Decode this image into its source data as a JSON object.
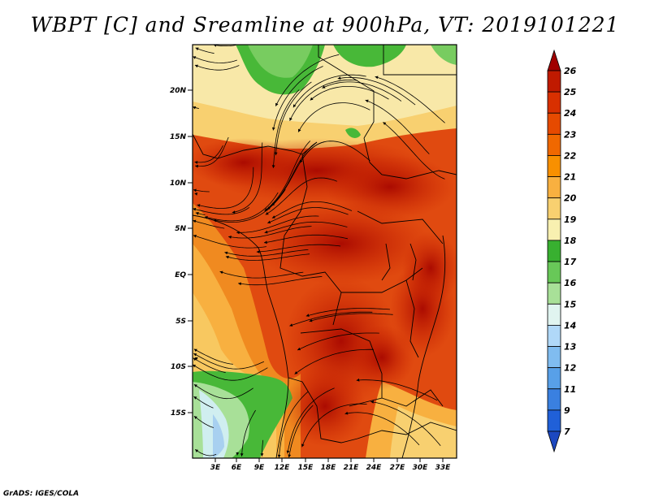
{
  "title": "WBPT [C] and Sreamline at 900hPa, VT: 2019101221",
  "footer": "GrADS: IGES/COLA",
  "map": {
    "lon_range": [
      0,
      35
    ],
    "lat_range": [
      -22,
      24
    ],
    "lat_ticks": [
      "20N",
      "15N",
      "10N",
      "5N",
      "EQ",
      "5S",
      "10S",
      "15S"
    ],
    "lon_ticks": [
      "3E",
      "6E",
      "9E",
      "12E",
      "15E",
      "18E",
      "21E",
      "24E",
      "27E",
      "30E",
      "33E"
    ],
    "fields": [
      "wet-bulb potential temperature shading",
      "900hPa streamlines",
      "country borders"
    ]
  },
  "colorbar": {
    "levels": [
      "26",
      "25",
      "24",
      "23",
      "22",
      "21",
      "20",
      "19",
      "18",
      "17",
      "16",
      "15",
      "14",
      "13",
      "12",
      "11",
      "9",
      "7"
    ],
    "colors": [
      "#a00000",
      "#c01a00",
      "#d83000",
      "#e64a00",
      "#f06800",
      "#f89000",
      "#f8b040",
      "#f8d070",
      "#f8f0b0",
      "#38b030",
      "#68c858",
      "#a8e098",
      "#e0f4f0",
      "#b0d8f8",
      "#80bcf0",
      "#58a0e8",
      "#3a80e0",
      "#2060d8",
      "#1c48c0"
    ]
  }
}
